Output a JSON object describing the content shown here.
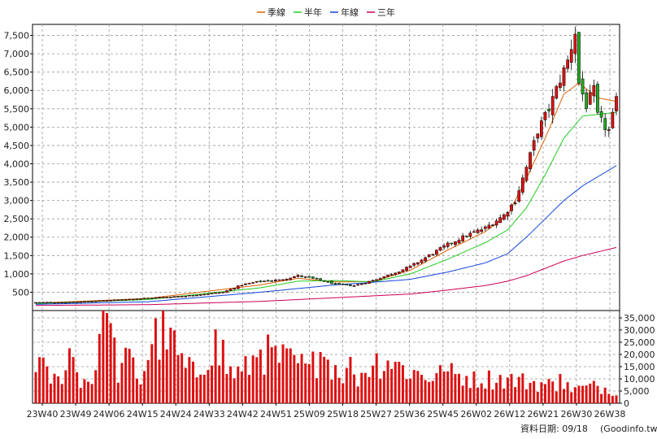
{
  "chart_data": [
    {
      "type": "candlestick",
      "title": "",
      "legend": {
        "position": "top-center",
        "items": [
          {
            "name": "季線",
            "color": "#e06000"
          },
          {
            "name": "半年",
            "color": "#22cc22"
          },
          {
            "name": "年線",
            "color": "#1144dd"
          },
          {
            "name": "三年",
            "color": "#cc0055"
          }
        ]
      },
      "x_ticks": [
        "23W40",
        "23W49",
        "24W06",
        "24W15",
        "24W24",
        "24W33",
        "24W42",
        "24W51",
        "25W09",
        "25W18",
        "25W27",
        "25W36",
        "25W45",
        "26W02",
        "26W12",
        "26W21",
        "26W30",
        "26W38"
      ],
      "ylim": [
        0,
        7800
      ],
      "y_ticks": [
        500,
        1000,
        1500,
        2000,
        2500,
        3000,
        3500,
        4000,
        4500,
        5000,
        5500,
        6000,
        6500,
        7000,
        7500
      ],
      "y_tick_labels": [
        "500",
        "1,000",
        "1,500",
        "2,000",
        "2,500",
        "3,000",
        "3,500",
        "4,000",
        "4,500",
        "5,000",
        "5,500",
        "6,000",
        "6,500",
        "7,000",
        "7,500"
      ],
      "grid": true,
      "up_color": "#dd1111",
      "down_color": "#22aa22",
      "weeks": 156,
      "close_anchors": [
        [
          0,
          220
        ],
        [
          10,
          230
        ],
        [
          20,
          280
        ],
        [
          30,
          340
        ],
        [
          40,
          400
        ],
        [
          50,
          500
        ],
        [
          55,
          700
        ],
        [
          60,
          800
        ],
        [
          65,
          830
        ],
        [
          70,
          950
        ],
        [
          75,
          850
        ],
        [
          80,
          720
        ],
        [
          85,
          680
        ],
        [
          90,
          820
        ],
        [
          95,
          1000
        ],
        [
          100,
          1200
        ],
        [
          105,
          1500
        ],
        [
          110,
          1800
        ],
        [
          115,
          2050
        ],
        [
          120,
          2250
        ],
        [
          125,
          2600
        ],
        [
          128,
          3000
        ],
        [
          131,
          3900
        ],
        [
          134,
          4900
        ],
        [
          137,
          5500
        ],
        [
          140,
          6300
        ],
        [
          142,
          6800
        ],
        [
          144,
          7600
        ],
        [
          145,
          6200
        ],
        [
          147,
          5600
        ],
        [
          149,
          6000
        ],
        [
          150,
          5300
        ],
        [
          152,
          5000
        ],
        [
          153,
          4900
        ],
        [
          155,
          5700
        ]
      ],
      "moving_averages": [
        {
          "name": "季線",
          "anchors": [
            [
              0,
              200
            ],
            [
              30,
              330
            ],
            [
              60,
              700
            ],
            [
              70,
              880
            ],
            [
              80,
              780
            ],
            [
              90,
              790
            ],
            [
              100,
              1100
            ],
            [
              110,
              1650
            ],
            [
              120,
              2150
            ],
            [
              126,
              2600
            ],
            [
              131,
              3600
            ],
            [
              136,
              4700
            ],
            [
              141,
              5900
            ],
            [
              145,
              6200
            ],
            [
              150,
              5800
            ],
            [
              155,
              5700
            ]
          ]
        },
        {
          "name": "半年",
          "anchors": [
            [
              0,
              190
            ],
            [
              30,
              300
            ],
            [
              60,
              620
            ],
            [
              70,
              800
            ],
            [
              80,
              820
            ],
            [
              90,
              780
            ],
            [
              100,
              1000
            ],
            [
              110,
              1400
            ],
            [
              120,
              1850
            ],
            [
              126,
              2200
            ],
            [
              131,
              2800
            ],
            [
              136,
              3700
            ],
            [
              141,
              4700
            ],
            [
              146,
              5300
            ],
            [
              155,
              5400
            ]
          ]
        },
        {
          "name": "年線",
          "anchors": [
            [
              0,
              170
            ],
            [
              30,
              240
            ],
            [
              60,
              500
            ],
            [
              80,
              700
            ],
            [
              90,
              770
            ],
            [
              100,
              850
            ],
            [
              110,
              1050
            ],
            [
              120,
              1300
            ],
            [
              126,
              1550
            ],
            [
              131,
              2000
            ],
            [
              136,
              2500
            ],
            [
              141,
              3000
            ],
            [
              146,
              3400
            ],
            [
              155,
              3950
            ]
          ]
        },
        {
          "name": "三年",
          "anchors": [
            [
              0,
              140
            ],
            [
              30,
              160
            ],
            [
              60,
              250
            ],
            [
              80,
              350
            ],
            [
              100,
              450
            ],
            [
              110,
              560
            ],
            [
              120,
              680
            ],
            [
              126,
              800
            ],
            [
              131,
              950
            ],
            [
              136,
              1150
            ],
            [
              141,
              1350
            ],
            [
              146,
              1500
            ],
            [
              155,
              1720
            ]
          ]
        }
      ]
    },
    {
      "type": "bar",
      "title": "",
      "ylim": [
        0,
        38000
      ],
      "y_ticks": [
        0,
        5000,
        10000,
        15000,
        20000,
        25000,
        30000,
        35000
      ],
      "y_tick_labels": [
        "0",
        "5,000",
        "10,000",
        "15,000",
        "20,000",
        "25,000",
        "30,000",
        "35,000"
      ],
      "bar_color": "#dd1111",
      "volume_anchors": [
        [
          0,
          19000
        ],
        [
          3,
          11000
        ],
        [
          6,
          9000
        ],
        [
          9,
          21000
        ],
        [
          12,
          10000
        ],
        [
          15,
          9000
        ],
        [
          18,
          37000
        ],
        [
          20,
          28000
        ],
        [
          22,
          13000
        ],
        [
          25,
          18000
        ],
        [
          28,
          9000
        ],
        [
          31,
          26000
        ],
        [
          34,
          28000
        ],
        [
          36,
          30000
        ],
        [
          38,
          19000
        ],
        [
          40,
          14000
        ],
        [
          43,
          12000
        ],
        [
          46,
          22000
        ],
        [
          48,
          24000
        ],
        [
          50,
          14000
        ],
        [
          55,
          12000
        ],
        [
          60,
          21000
        ],
        [
          65,
          18000
        ],
        [
          70,
          16000
        ],
        [
          73,
          13000
        ],
        [
          76,
          21000
        ],
        [
          80,
          15000
        ],
        [
          85,
          9000
        ],
        [
          90,
          17000
        ],
        [
          95,
          18000
        ],
        [
          100,
          13000
        ],
        [
          105,
          11000
        ],
        [
          110,
          12000
        ],
        [
          115,
          11000
        ],
        [
          120,
          10000
        ],
        [
          125,
          10000
        ],
        [
          130,
          9000
        ],
        [
          135,
          8000
        ],
        [
          140,
          7000
        ],
        [
          145,
          6000
        ],
        [
          150,
          7000
        ],
        [
          155,
          5000
        ]
      ],
      "volume_spikes": [
        [
          19,
          37000
        ],
        [
          36,
          31000
        ],
        [
          50,
          26000
        ],
        [
          60,
          22000
        ],
        [
          76,
          21000
        ],
        [
          84,
          19000
        ],
        [
          97,
          17000
        ],
        [
          109,
          13000
        ],
        [
          117,
          13000
        ],
        [
          140,
          12000
        ]
      ]
    }
  ],
  "footer": {
    "date_label": "資料日期: 09/18",
    "source_label": "(Goodinfo.tw)"
  }
}
